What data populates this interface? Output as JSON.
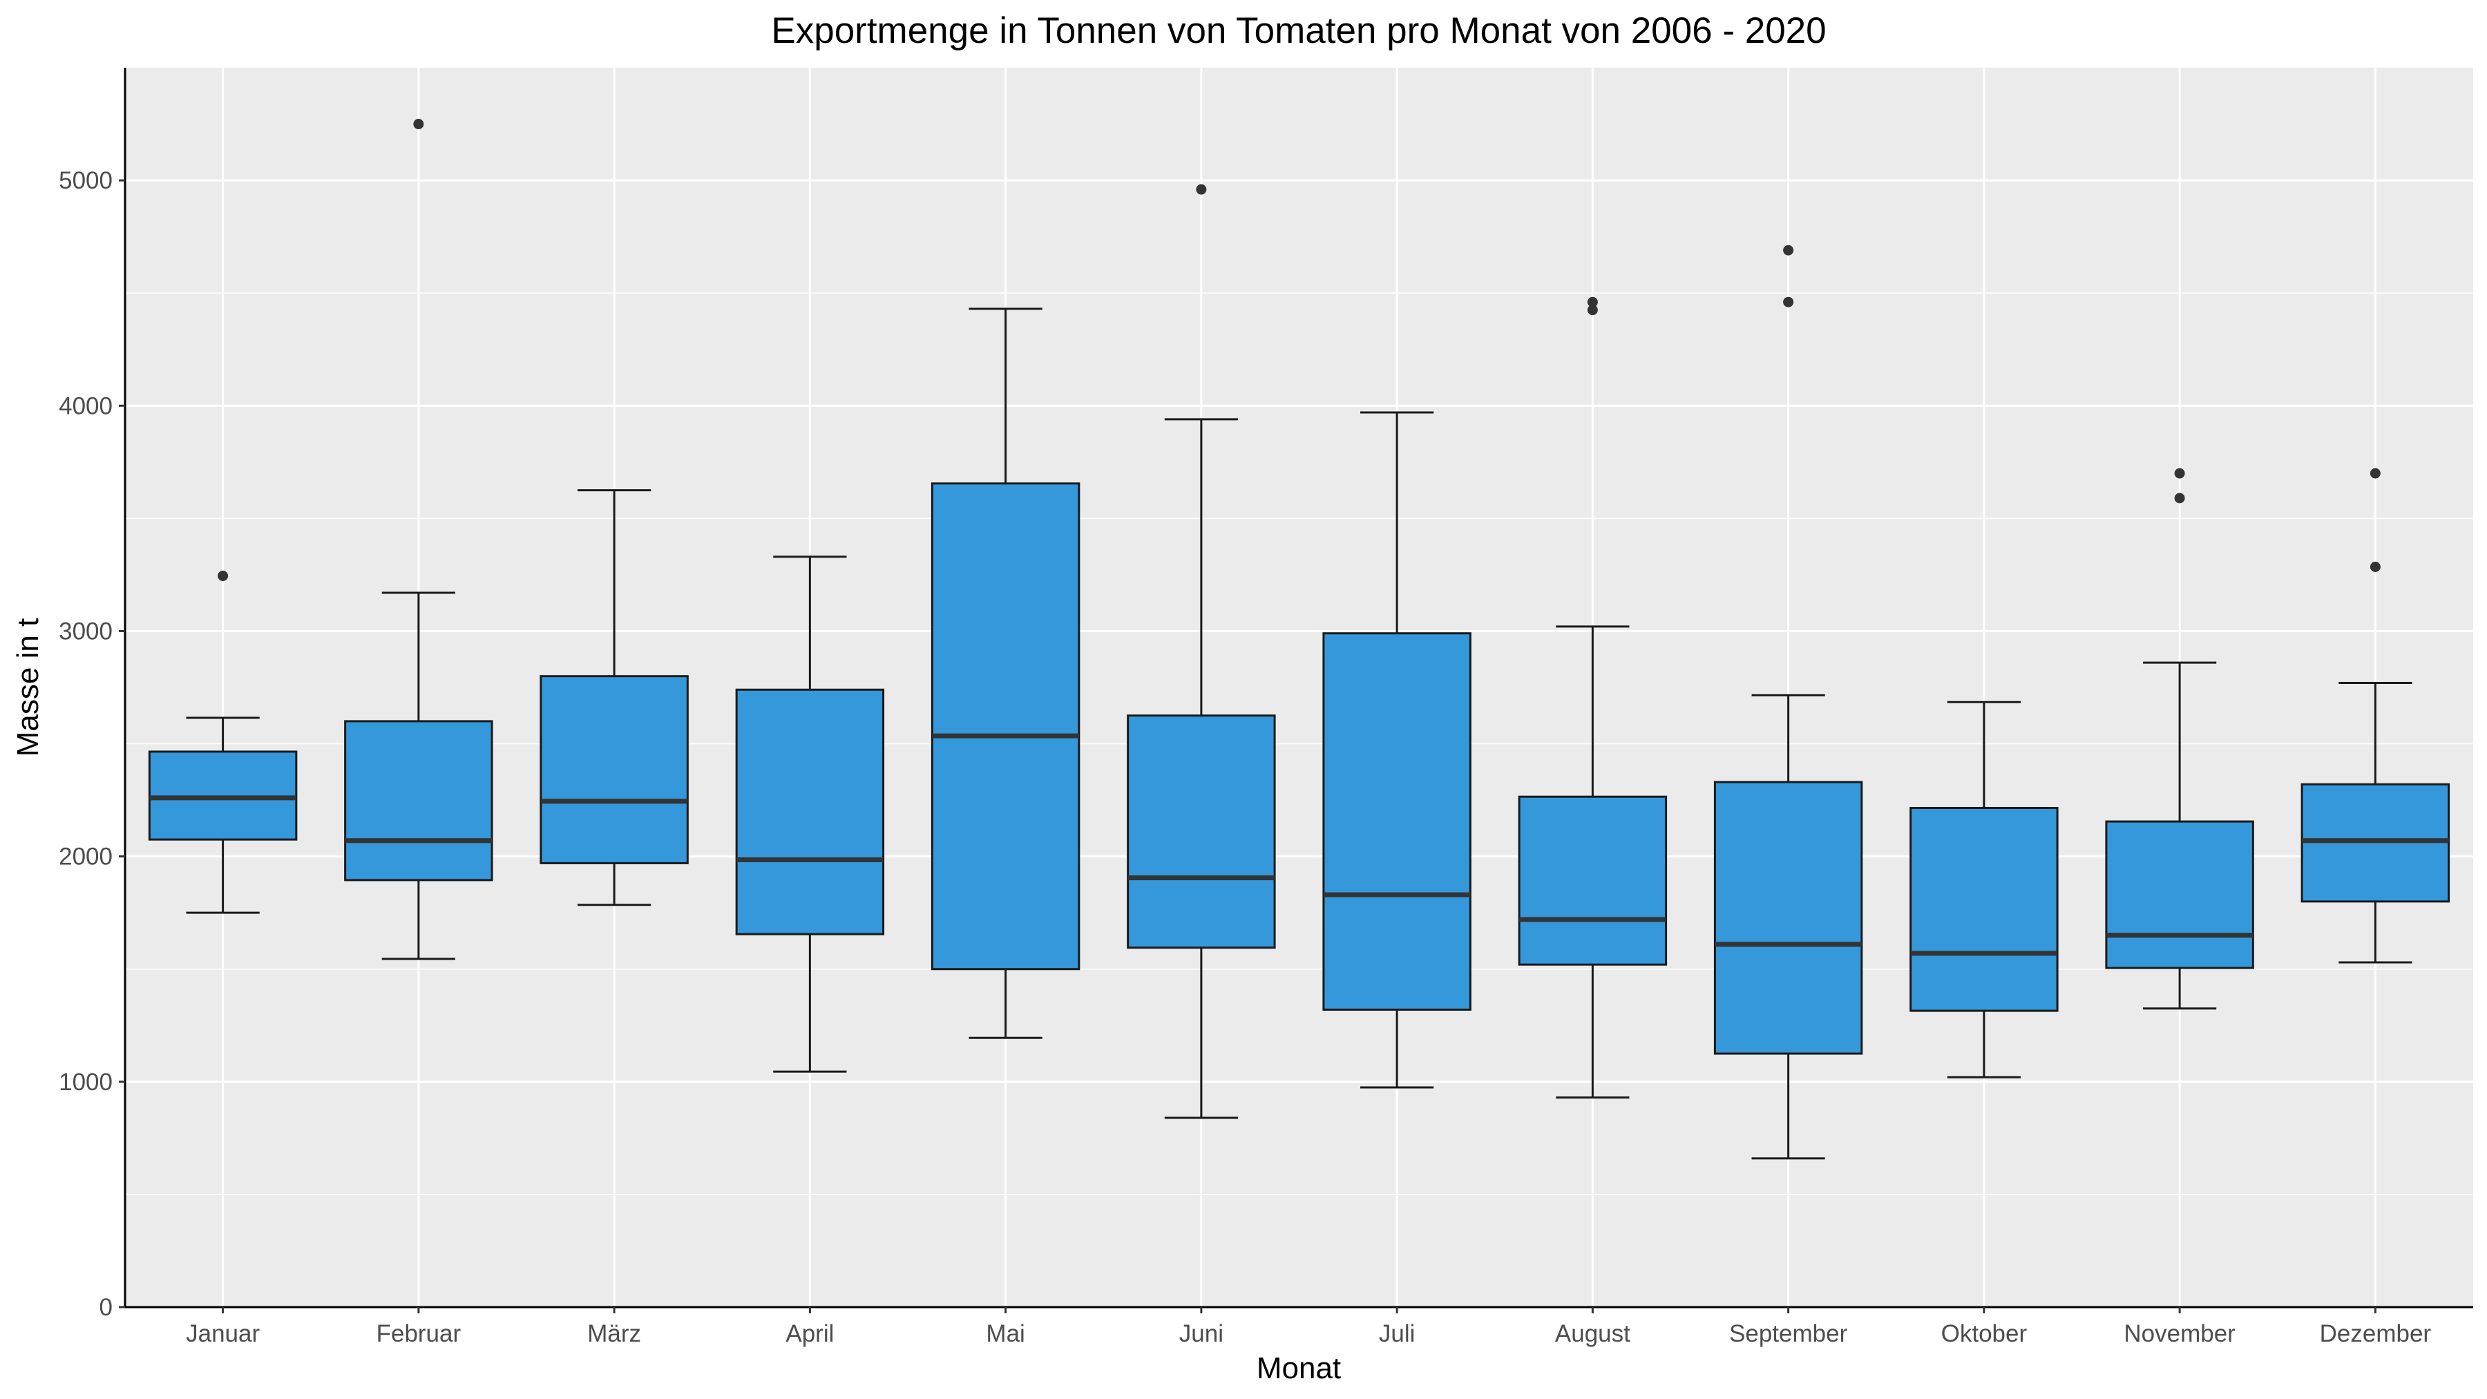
{
  "chart_data": {
    "type": "box",
    "title": "Exportmenge in Tonnen von Tomaten pro Monat von 2006 - 2020",
    "xlabel": "Monat",
    "ylabel": "Masse in t",
    "ylim": [
      0,
      5500
    ],
    "yticks": [
      0,
      1000,
      2000,
      3000,
      4000,
      5000
    ],
    "grid": true,
    "fill_color": "#3498db",
    "panel_color": "#ebebeb",
    "categories": [
      "Januar",
      "Februar",
      "März",
      "April",
      "Mai",
      "Juni",
      "Juli",
      "August",
      "September",
      "Oktober",
      "November",
      "Dezember"
    ],
    "boxes": [
      {
        "whisker_low": 1750,
        "q1": 2075,
        "median": 2260,
        "q3": 2465,
        "whisker_high": 2615,
        "outliers": [
          3245
        ]
      },
      {
        "whisker_low": 1545,
        "q1": 1895,
        "median": 2070,
        "q3": 2600,
        "whisker_high": 3170,
        "outliers": [
          5250
        ]
      },
      {
        "whisker_low": 1785,
        "q1": 1970,
        "median": 2245,
        "q3": 2800,
        "whisker_high": 3625,
        "outliers": []
      },
      {
        "whisker_low": 1045,
        "q1": 1655,
        "median": 1985,
        "q3": 2740,
        "whisker_high": 3330,
        "outliers": []
      },
      {
        "whisker_low": 1195,
        "q1": 1500,
        "median": 2535,
        "q3": 3655,
        "whisker_high": 4430,
        "outliers": []
      },
      {
        "whisker_low": 840,
        "q1": 1595,
        "median": 1905,
        "q3": 2625,
        "whisker_high": 3940,
        "outliers": [
          4960
        ]
      },
      {
        "whisker_low": 975,
        "q1": 1320,
        "median": 1830,
        "q3": 2990,
        "whisker_high": 3970,
        "outliers": []
      },
      {
        "whisker_low": 930,
        "q1": 1520,
        "median": 1720,
        "q3": 2265,
        "whisker_high": 3020,
        "outliers": [
          4425,
          4460
        ]
      },
      {
        "whisker_low": 660,
        "q1": 1125,
        "median": 1610,
        "q3": 2330,
        "whisker_high": 2715,
        "outliers": [
          4460,
          4690
        ]
      },
      {
        "whisker_low": 1020,
        "q1": 1315,
        "median": 1570,
        "q3": 2215,
        "whisker_high": 2685,
        "outliers": []
      },
      {
        "whisker_low": 1325,
        "q1": 1505,
        "median": 1650,
        "q3": 2155,
        "whisker_high": 2860,
        "outliers": [
          3590,
          3700
        ]
      },
      {
        "whisker_low": 1530,
        "q1": 1800,
        "median": 2070,
        "q3": 2320,
        "whisker_high": 2770,
        "outliers": [
          3285,
          3700
        ]
      }
    ]
  }
}
